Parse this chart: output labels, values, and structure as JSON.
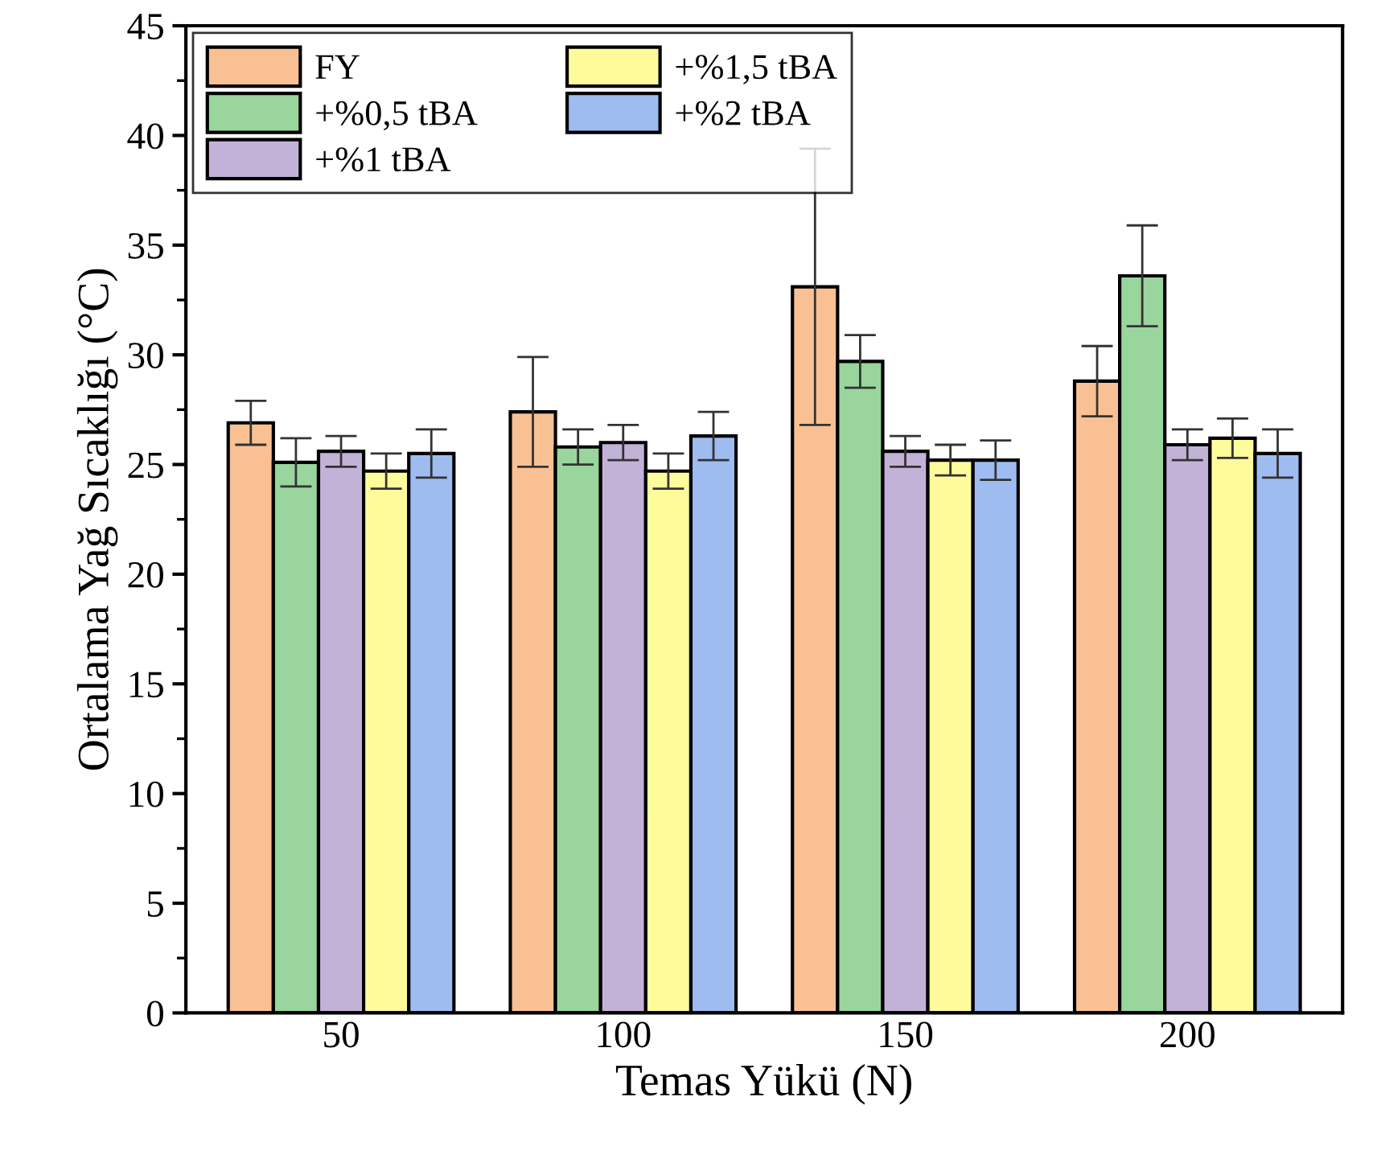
{
  "chart_data": {
    "type": "bar",
    "xlabel": "Temas Yükü (N)",
    "ylabel": "Ortalama Yağ Sıcaklığı (°C)",
    "categories": [
      "50",
      "100",
      "150",
      "200"
    ],
    "series": [
      {
        "name": "FY",
        "color": "#f9c193",
        "values": [
          26.9,
          27.4,
          33.1,
          28.8
        ],
        "errors": [
          1.0,
          2.5,
          6.3,
          1.6
        ]
      },
      {
        "name": "+%0,5 tBA",
        "color": "#99d59c",
        "values": [
          25.1,
          25.8,
          29.7,
          33.6
        ],
        "errors": [
          1.1,
          0.8,
          1.2,
          2.3
        ]
      },
      {
        "name": "+%1 tBA",
        "color": "#c3b2d8",
        "values": [
          25.6,
          26.0,
          25.6,
          25.9
        ],
        "errors": [
          0.7,
          0.8,
          0.7,
          0.7
        ]
      },
      {
        "name": "+%1,5 tBA",
        "color": "#fdfb9b",
        "values": [
          24.7,
          24.7,
          25.2,
          26.2
        ],
        "errors": [
          0.8,
          0.8,
          0.7,
          0.9
        ]
      },
      {
        "name": "+%2 tBA",
        "color": "#9ebcf0",
        "values": [
          25.5,
          26.3,
          25.2,
          25.5
        ],
        "errors": [
          1.1,
          1.1,
          0.9,
          1.1
        ]
      }
    ],
    "ylim": [
      0,
      45
    ],
    "yticks": [
      0,
      5,
      10,
      15,
      20,
      25,
      30,
      35,
      40,
      45
    ],
    "grid": false,
    "legend": "top left"
  }
}
